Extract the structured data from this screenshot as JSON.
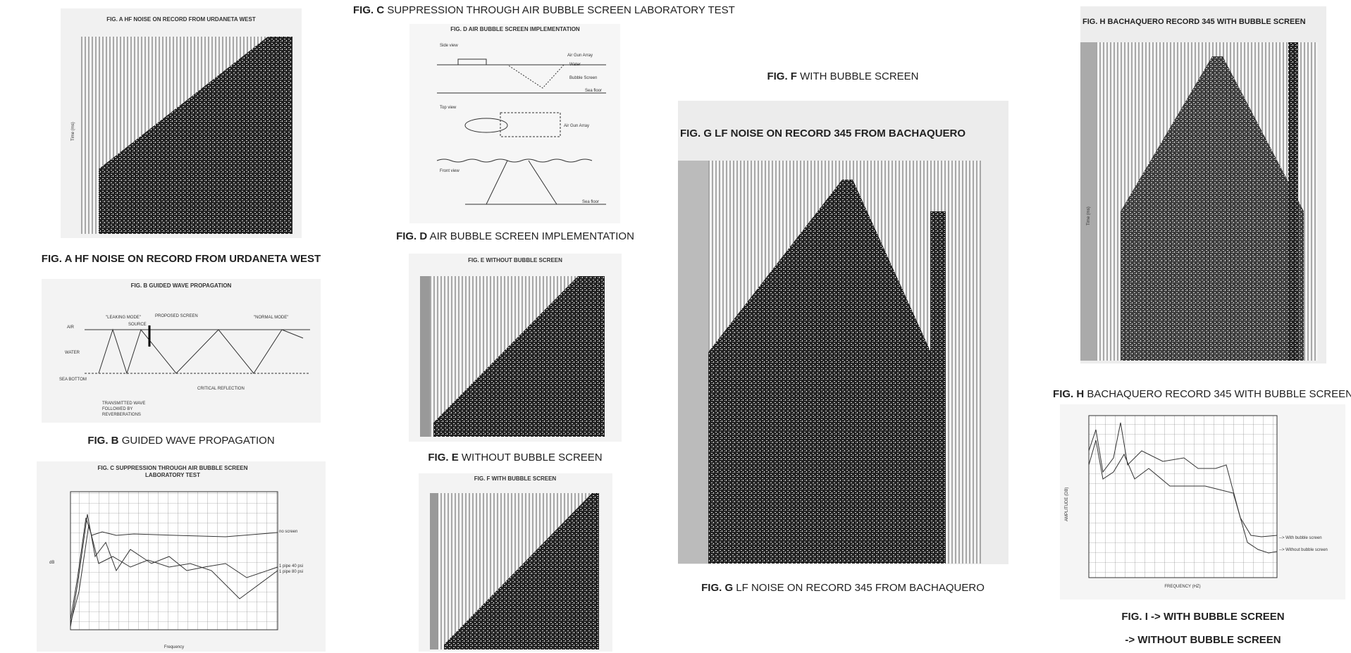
{
  "panels": {
    "a": {
      "title": "FIG. A    HF NOISE ON RECORD FROM URDANETA WEST",
      "axis": "Time (ms)"
    },
    "b": {
      "title": "FIG. B    GUIDED WAVE PROPAGATION",
      "labels": [
        "\"LEAKING MODE\"",
        "SOURCE",
        "PROPOSED SCREEN",
        "\"NORMAL MODE\"",
        "AIR",
        "WATER",
        "SEA BOTTOM",
        "CRITICAL REFLECTION",
        "TRANSMITTED WAVE",
        "FOLLOWED BY",
        "REVERBERATIONS"
      ]
    },
    "c": {
      "title": [
        "FIG. C    SUPPRESSION THROUGH AIR BUBBLE SCREEN",
        "LABORATORY TEST"
      ],
      "labels": [
        "no screen",
        "1 pipe 40 psi",
        "1 pipe 80 psi",
        "Frequency",
        "dB"
      ]
    },
    "d": {
      "title": "FIG. D    AIR BUBBLE SCREEN IMPLEMENTATION",
      "labels": [
        "Side view",
        "Air Gun Array",
        "Water",
        "Bubble Screen",
        "Sea floor",
        "Top view",
        "Air Gun Array",
        "Front view",
        "Sea floor"
      ]
    },
    "e": {
      "title": "FIG. E    WITHOUT BUBBLE SCREEN"
    },
    "f": {
      "title": "FIG. F    WITH BUBBLE SCREEN"
    },
    "g": {
      "title": "FIG. G    LF NOISE ON RECORD 345 FROM BACHAQUERO"
    },
    "h": {
      "title": "FIG. H    BACHAQUERO RECORD 345 WITH BUBBLE SCREEN",
      "axis": "Time (ms)"
    },
    "i": {
      "labels": [
        "--> With bubble screen",
        "--> Without bubble screen",
        "FREQUENCY (HZ)",
        "AMPLITUDE (DB)"
      ]
    }
  },
  "captions": {
    "a": {
      "label": "FIG. A",
      "text": "HF NOISE ON RECORD FROM URDANETA WEST"
    },
    "b": {
      "label": "FIG. B",
      "text": "GUIDED WAVE PROPAGATION"
    },
    "c": {
      "label": "FIG. C",
      "text": "SUPPRESSION THROUGH AIR BUBBLE SCREEN LABORATORY TEST"
    },
    "d": {
      "label": "FIG. D",
      "text": "AIR BUBBLE SCREEN IMPLEMENTATION"
    },
    "e": {
      "label": "FIG. E",
      "text": "WITHOUT BUBBLE SCREEN"
    },
    "f": {
      "label": "FIG. F",
      "text": "WITH BUBBLE SCREEN"
    },
    "g": {
      "label": "FIG. G",
      "text": "LF NOISE ON RECORD 345 FROM BACHAQUERO"
    },
    "h": {
      "label": "FIG. H",
      "text": "BACHAQUERO RECORD 345 WITH BUBBLE SCREEN"
    },
    "i": [
      "FIG. I -> WITH BUBBLE SCREEN",
      "-> WITHOUT BUBBLE SCREEN"
    ]
  }
}
